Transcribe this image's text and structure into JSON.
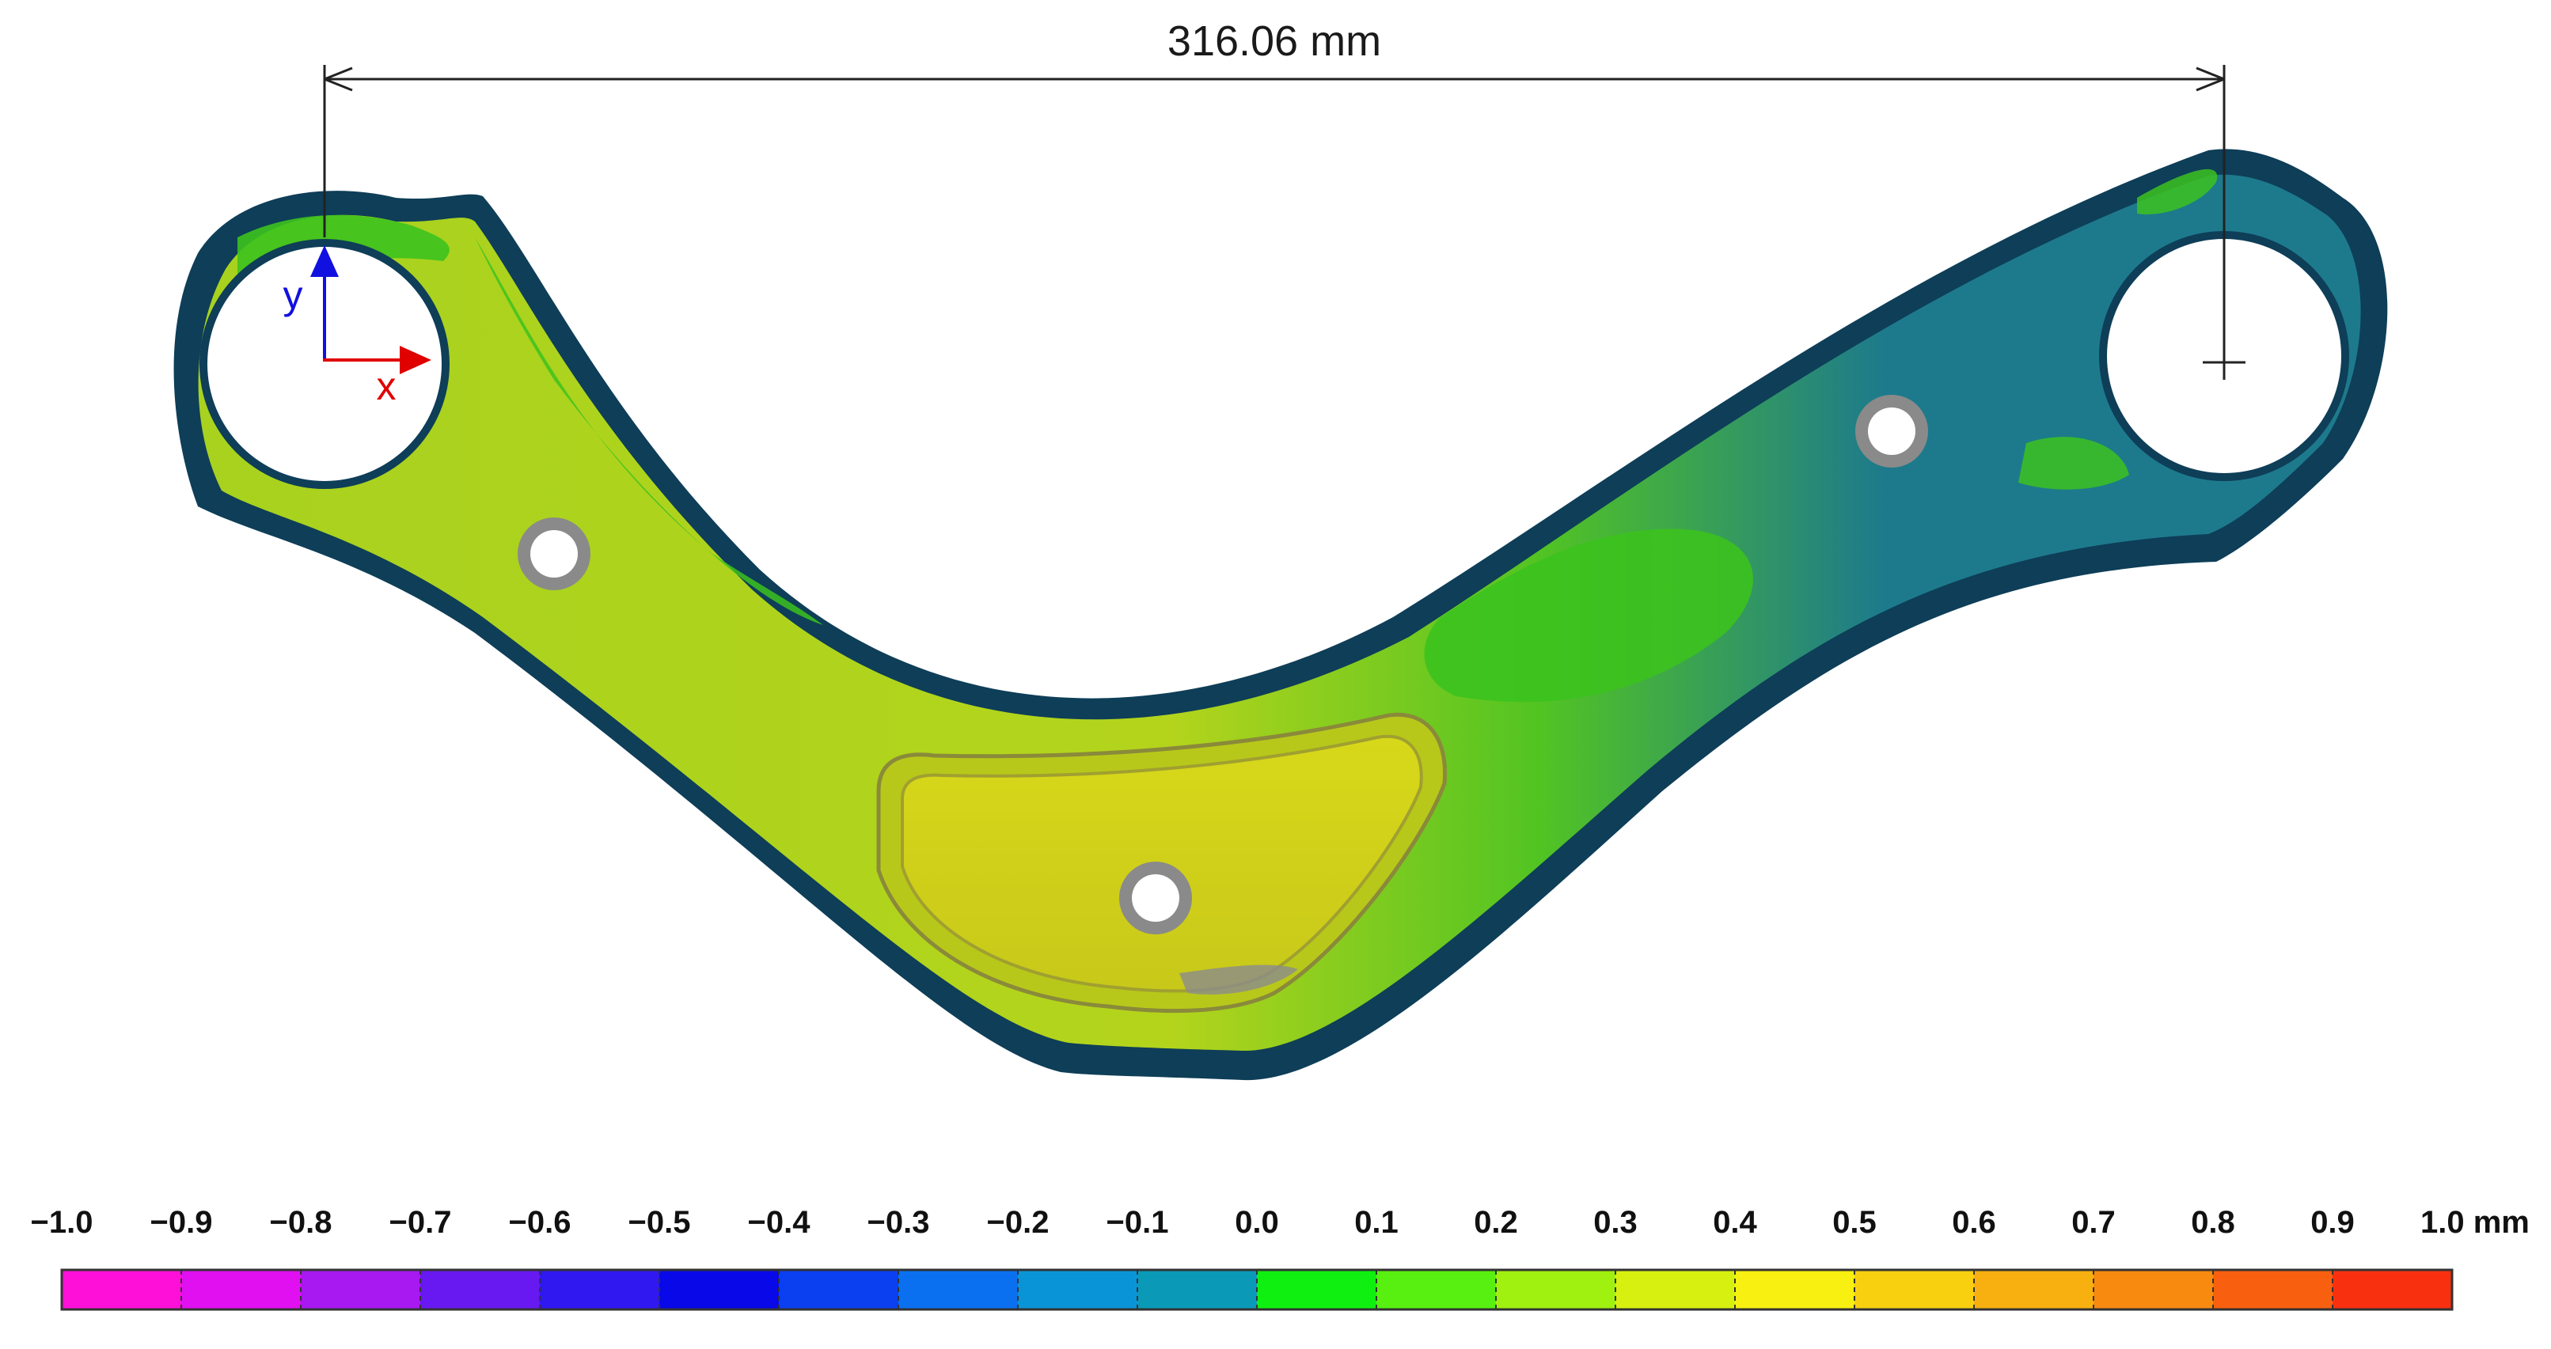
{
  "dimension": {
    "label": "316.06 mm"
  },
  "axes": {
    "x_label": "x",
    "y_label": "y",
    "x_color": "#e00000",
    "y_color": "#1010e0"
  },
  "part": {
    "regions": [
      {
        "name": "green",
        "color": "#3cc21e"
      },
      {
        "name": "yellow-green",
        "color": "#a8d21e"
      },
      {
        "name": "teal",
        "color": "#1d7a8c"
      },
      {
        "name": "dark-edge",
        "color": "#0e3e58"
      }
    ]
  },
  "colorbar": {
    "min": -1.0,
    "max": 1.0,
    "unit": "mm",
    "tick_labels": [
      "−1.0",
      "−0.9",
      "−0.8",
      "−0.7",
      "−0.6",
      "−0.5",
      "−0.4",
      "−0.3",
      "−0.2",
      "−0.1",
      "0.0",
      "0.1",
      "0.2",
      "0.3",
      "0.4",
      "0.5",
      "0.6",
      "0.7",
      "0.8",
      "0.9",
      "1.0 mm"
    ],
    "segment_colors": [
      "#ff10d8",
      "#e010f0",
      "#a818f0",
      "#6818f0",
      "#3018f0",
      "#0808e8",
      "#0a40f0",
      "#0a70f0",
      "#0a94d8",
      "#0a9ab8",
      "#10f010",
      "#58f010",
      "#a0f010",
      "#d8f010",
      "#f8f010",
      "#f8d010",
      "#f8b010",
      "#f88a10",
      "#f86010",
      "#f83010"
    ]
  }
}
